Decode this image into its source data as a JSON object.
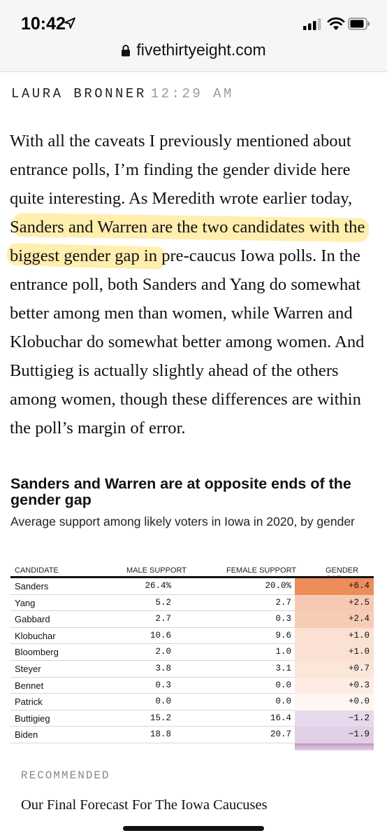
{
  "status_bar": {
    "time": "10:42",
    "icons": [
      "location-arrow-icon",
      "cellular-signal-icon",
      "wifi-icon",
      "battery-icon"
    ]
  },
  "browser": {
    "url": "fivethirtyeight.com",
    "lock_icon": "lock-icon"
  },
  "post": {
    "author": "LAURA BRONNER",
    "time": "12:29 AM",
    "paragraph": "With all the caveats I previously mentioned about entrance polls, I’m finding the gender divide here quite interesting. As Meredith wrote earlier today, Sanders and Warren are the two candidates with the biggest gender gap in pre-caucus Iowa polls. In the entrance poll, both Sanders and Yang do somewhat better among men than women, while Warren and Klobuchar do somewhat better among women. And Buttigieg is actually slightly ahead of the others among women, though these differences are within the poll’s margin of error.",
    "highlight_color": "#ffd63c"
  },
  "chart": {
    "title": "Sanders and Warren are at opposite ends of the gender gap",
    "subtitle": "Average support among likely voters in Iowa in 2020, by gender",
    "columns": [
      "CANDIDATE",
      "MALE SUPPORT",
      "FEMALE SUPPORT",
      "GENDER GAP"
    ],
    "rows": [
      {
        "candidate": "Sanders",
        "male": "26.4%",
        "female": "20.0%",
        "gap": "+6.4",
        "gap_value": 6.4
      },
      {
        "candidate": "Yang",
        "male": "5.2",
        "female": "2.7",
        "gap": "+2.5",
        "gap_value": 2.5
      },
      {
        "candidate": "Gabbard",
        "male": "2.7",
        "female": "0.3",
        "gap": "+2.4",
        "gap_value": 2.4
      },
      {
        "candidate": "Klobuchar",
        "male": "10.6",
        "female": "9.6",
        "gap": "+1.0",
        "gap_value": 1.0
      },
      {
        "candidate": "Bloomberg",
        "male": "2.0",
        "female": "1.0",
        "gap": "+1.0",
        "gap_value": 1.0
      },
      {
        "candidate": "Steyer",
        "male": "3.8",
        "female": "3.1",
        "gap": "+0.7",
        "gap_value": 0.7
      },
      {
        "candidate": "Bennet",
        "male": "0.3",
        "female": "0.0",
        "gap": "+0.3",
        "gap_value": 0.3
      },
      {
        "candidate": "Patrick",
        "male": "0.0",
        "female": "0.0",
        "gap": "+0.0",
        "gap_value": 0.0
      },
      {
        "candidate": "Buttigieg",
        "male": "15.2",
        "female": "16.4",
        "gap": "−1.2",
        "gap_value": -1.2
      },
      {
        "candidate": "Biden",
        "male": "18.8",
        "female": "20.7",
        "gap": "−1.9",
        "gap_value": -1.9
      },
      {
        "candidate": "",
        "male": "",
        "female": "",
        "gap": "",
        "gap_value": -7.0
      }
    ],
    "colors": {
      "male_strong": "#ec8d5a",
      "male_light": "#fdf1ea",
      "female_light": "#f1e9f4",
      "female_strong": "#b98abe"
    }
  },
  "recommended": {
    "label": "RECOMMENDED",
    "link": "Our Final Forecast For The Iowa Caucuses"
  }
}
